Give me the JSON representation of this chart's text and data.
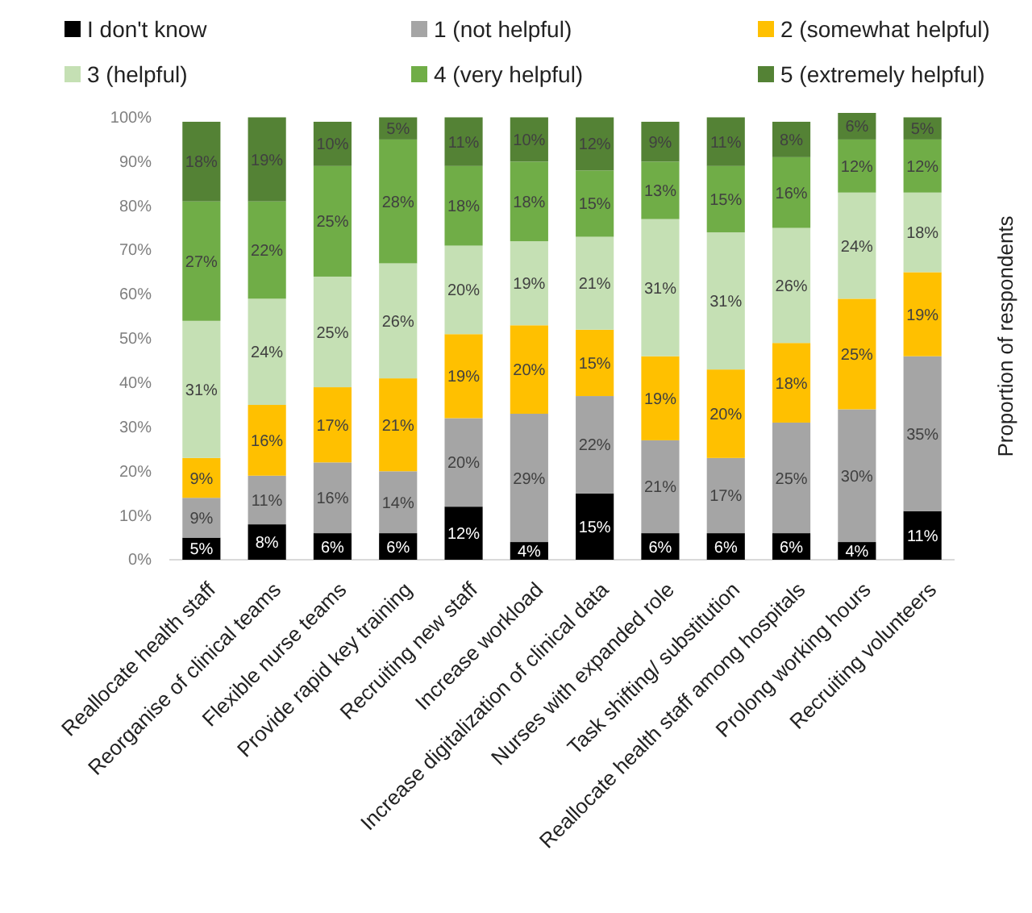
{
  "chart_data": {
    "type": "bar",
    "stacked": true,
    "ylabel": "Proportion of respondents",
    "legend": "top",
    "categories": [
      "Reallocate health staff",
      "Reorganise of clinical teams",
      "Flexible nurse teams",
      "Provide rapid key training",
      "Recruiting new staff",
      "Increase workload",
      "Increase digitalization of clinical data",
      "Nurses with expanded role",
      "Task shifting/ substitution",
      "Reallocate health staff among hospitals",
      "Prolong working hours",
      "Recruiting volunteers"
    ],
    "ylim": [
      0,
      101
    ],
    "yticks": [
      {
        "value": 0,
        "label": "0%"
      },
      {
        "value": 10,
        "label": "10%"
      },
      {
        "value": 20,
        "label": "20%"
      },
      {
        "value": 30,
        "label": "30%"
      },
      {
        "value": 40,
        "label": "40%"
      },
      {
        "value": 50,
        "label": "50%"
      },
      {
        "value": 60,
        "label": "60%"
      },
      {
        "value": 70,
        "label": "70%"
      },
      {
        "value": 80,
        "label": "80%"
      },
      {
        "value": 90,
        "label": "90%"
      },
      {
        "value": 100,
        "label": "100%"
      }
    ],
    "series": [
      {
        "name": "I don't know",
        "color": "#000000",
        "values": [
          5,
          8,
          6,
          6,
          12,
          4,
          15,
          6,
          6,
          6,
          4,
          11
        ],
        "value_labels": [
          "5%",
          "8%",
          "6%",
          "6%",
          "12%",
          "4%",
          "15%",
          "6%",
          "6%",
          "6%",
          "4%",
          "11%"
        ]
      },
      {
        "name": "1   (not helpful)",
        "color": "#a5a5a5",
        "values": [
          9,
          11,
          16,
          14,
          20,
          29,
          22,
          21,
          17,
          25,
          30,
          35
        ],
        "value_labels": [
          "9%",
          "11%",
          "16%",
          "14%",
          "20%",
          "29%",
          "22%",
          "21%",
          "17%",
          "25%",
          "30%",
          "35%"
        ]
      },
      {
        "name": "2   (somewhat helpful)",
        "color": "#ffc000",
        "values": [
          9,
          16,
          17,
          21,
          19,
          20,
          15,
          19,
          20,
          18,
          25,
          19
        ],
        "value_labels": [
          "9%",
          "16%",
          "17%",
          "21%",
          "19%",
          "20%",
          "15%",
          "19%",
          "20%",
          "18%",
          "25%",
          "19%"
        ]
      },
      {
        "name": "3   (helpful)",
        "color": "#c5e0b4",
        "values": [
          31,
          24,
          25,
          26,
          20,
          19,
          21,
          31,
          31,
          26,
          24,
          18
        ],
        "value_labels": [
          "31%",
          "24%",
          "25%",
          "26%",
          "20%",
          "19%",
          "21%",
          "31%",
          "31%",
          "26%",
          "24%",
          "18%"
        ]
      },
      {
        "name": "4   (very helpful)",
        "color": "#70ad47",
        "values": [
          27,
          22,
          25,
          28,
          18,
          18,
          15,
          13,
          15,
          16,
          12,
          12
        ],
        "value_labels": [
          "27%",
          "22%",
          "25%",
          "28%",
          "18%",
          "18%",
          "15%",
          "13%",
          "15%",
          "16%",
          "12%",
          "12%"
        ]
      },
      {
        "name": "5   (extremely helpful)",
        "color": "#548235",
        "values": [
          18,
          19,
          10,
          5,
          11,
          10,
          12,
          9,
          11,
          8,
          6,
          5
        ],
        "value_labels": [
          "18%",
          "19%",
          "10%",
          "5%",
          "11%",
          "10%",
          "12%",
          "9%",
          "11%",
          "8%",
          "6%",
          "5%"
        ]
      }
    ]
  }
}
